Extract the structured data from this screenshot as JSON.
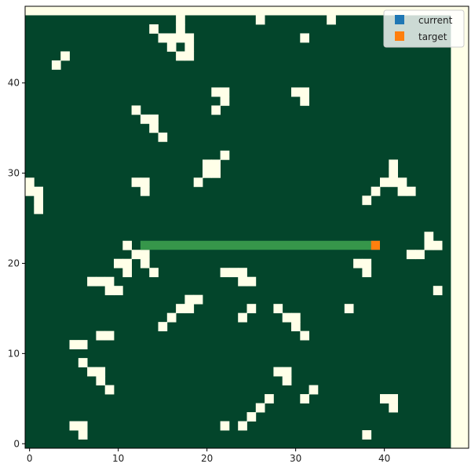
{
  "chart_data": {
    "type": "heatmap",
    "title": "",
    "xlabel": "",
    "ylabel": "",
    "xlim": [
      -0.5,
      49.5
    ],
    "ylim": [
      -0.5,
      48.5
    ],
    "grid_cols": 48,
    "grid_rows": 48,
    "x_ticks": [
      0,
      10,
      20,
      30,
      40
    ],
    "y_ticks": [
      0,
      10,
      20,
      30,
      40
    ],
    "legend_position": "top-right",
    "colors": {
      "background": "#FFFFE8",
      "free": "#03452B",
      "obstacle": "#FFFFE8",
      "path": "#36964A",
      "current": "#1F77B4",
      "target": "#FF7F0E",
      "frame": "#000000"
    },
    "legend": [
      {
        "label": "current",
        "color": "#1F77B4"
      },
      {
        "label": "target",
        "color": "#FF7F0E"
      }
    ],
    "obstacles": [
      [
        17,
        47
      ],
      [
        26,
        47
      ],
      [
        34,
        47
      ],
      [
        14,
        46
      ],
      [
        17,
        46
      ],
      [
        15,
        45
      ],
      [
        16,
        45
      ],
      [
        17,
        45
      ],
      [
        18,
        45
      ],
      [
        31,
        45
      ],
      [
        16,
        44
      ],
      [
        18,
        44
      ],
      [
        17,
        43
      ],
      [
        18,
        43
      ],
      [
        4,
        43
      ],
      [
        3,
        42
      ],
      [
        21,
        39
      ],
      [
        22,
        39
      ],
      [
        30,
        39
      ],
      [
        31,
        39
      ],
      [
        22,
        38
      ],
      [
        31,
        38
      ],
      [
        12,
        37
      ],
      [
        21,
        37
      ],
      [
        13,
        36
      ],
      [
        14,
        36
      ],
      [
        14,
        35
      ],
      [
        15,
        34
      ],
      [
        22,
        32
      ],
      [
        20,
        31
      ],
      [
        21,
        31
      ],
      [
        41,
        31
      ],
      [
        20,
        30
      ],
      [
        21,
        30
      ],
      [
        41,
        30
      ],
      [
        0,
        29
      ],
      [
        12,
        29
      ],
      [
        13,
        29
      ],
      [
        19,
        29
      ],
      [
        40,
        29
      ],
      [
        41,
        29
      ],
      [
        42,
        29
      ],
      [
        0,
        28
      ],
      [
        1,
        28
      ],
      [
        13,
        28
      ],
      [
        39,
        28
      ],
      [
        42,
        28
      ],
      [
        43,
        28
      ],
      [
        1,
        27
      ],
      [
        38,
        27
      ],
      [
        1,
        26
      ],
      [
        45,
        23
      ],
      [
        11,
        22
      ],
      [
        45,
        22
      ],
      [
        46,
        22
      ],
      [
        12,
        21
      ],
      [
        13,
        21
      ],
      [
        43,
        21
      ],
      [
        44,
        21
      ],
      [
        10,
        20
      ],
      [
        11,
        20
      ],
      [
        13,
        20
      ],
      [
        37,
        20
      ],
      [
        38,
        20
      ],
      [
        11,
        19
      ],
      [
        14,
        19
      ],
      [
        22,
        19
      ],
      [
        23,
        19
      ],
      [
        24,
        19
      ],
      [
        38,
        19
      ],
      [
        7,
        18
      ],
      [
        8,
        18
      ],
      [
        9,
        18
      ],
      [
        24,
        18
      ],
      [
        25,
        18
      ],
      [
        9,
        17
      ],
      [
        10,
        17
      ],
      [
        46,
        17
      ],
      [
        18,
        16
      ],
      [
        19,
        16
      ],
      [
        17,
        15
      ],
      [
        18,
        15
      ],
      [
        25,
        15
      ],
      [
        28,
        15
      ],
      [
        36,
        15
      ],
      [
        16,
        14
      ],
      [
        24,
        14
      ],
      [
        29,
        14
      ],
      [
        30,
        14
      ],
      [
        15,
        13
      ],
      [
        30,
        13
      ],
      [
        8,
        12
      ],
      [
        9,
        12
      ],
      [
        31,
        12
      ],
      [
        5,
        11
      ],
      [
        6,
        11
      ],
      [
        6,
        9
      ],
      [
        7,
        8
      ],
      [
        8,
        8
      ],
      [
        28,
        8
      ],
      [
        29,
        8
      ],
      [
        8,
        7
      ],
      [
        29,
        7
      ],
      [
        9,
        6
      ],
      [
        32,
        6
      ],
      [
        27,
        5
      ],
      [
        31,
        5
      ],
      [
        40,
        5
      ],
      [
        41,
        5
      ],
      [
        26,
        4
      ],
      [
        41,
        4
      ],
      [
        25,
        3
      ],
      [
        5,
        2
      ],
      [
        6,
        2
      ],
      [
        22,
        2
      ],
      [
        24,
        2
      ],
      [
        6,
        1
      ],
      [
        38,
        1
      ]
    ],
    "path": [
      [
        13,
        22
      ],
      [
        38,
        22
      ]
    ],
    "current": [
      39,
      22
    ],
    "target": [
      39,
      22
    ]
  }
}
